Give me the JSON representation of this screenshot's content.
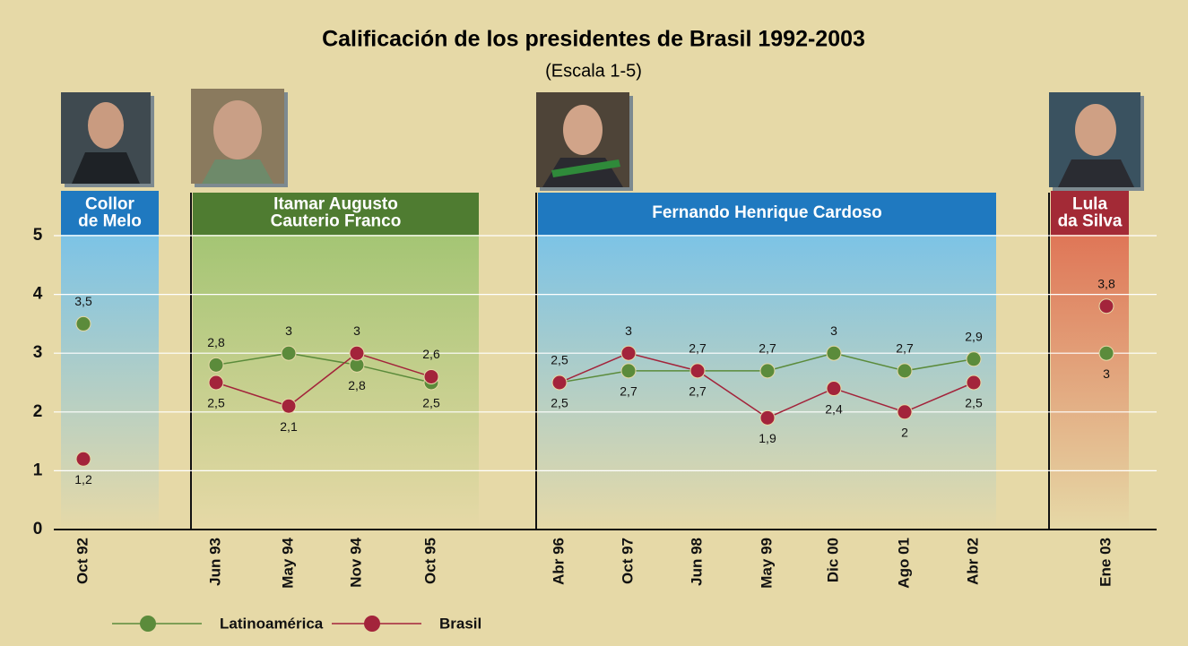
{
  "chart_data": {
    "type": "line",
    "title": "Calificación de los presidentes de Brasil 1992-2003",
    "subtitle": "(Escala 1-5)",
    "categories": [
      "Oct 92",
      "Jun 93",
      "May 94",
      "Nov 94",
      "Oct 95",
      "Abr 96",
      "Oct 97",
      "Jun 98",
      "May 99",
      "Dic 00",
      "Ago 01",
      "Abr 02",
      "Ene 03"
    ],
    "series": [
      {
        "name": "Latinoamérica",
        "color": "#5b8b3b",
        "values": [
          3.5,
          2.8,
          3,
          2.8,
          2.5,
          2.5,
          2.7,
          2.7,
          2.7,
          3,
          2.7,
          2.9,
          3
        ],
        "value_labels": [
          "3,5",
          "2,8",
          "3",
          "2,8",
          "2,5",
          "2,5",
          "2,7",
          "2,7",
          "2,7",
          "3",
          "2,7",
          "2,9",
          "3"
        ]
      },
      {
        "name": "Brasil",
        "color": "#a3243b",
        "values": [
          1.2,
          2.5,
          2.1,
          3,
          2.6,
          2.5,
          3,
          2.7,
          1.9,
          2.4,
          2,
          2.5,
          3.8
        ],
        "value_labels": [
          "1,2",
          "2,5",
          "2,1",
          "3",
          "2,6",
          "2,5",
          "3",
          "2,7",
          "1,9",
          "2,4",
          "2",
          "2,5",
          "3,8"
        ]
      }
    ],
    "periods": [
      {
        "label": [
          "Collor",
          "de Melo"
        ],
        "from": "Oct 92",
        "to": "Oct 92"
      },
      {
        "label": [
          "Itamar Augusto",
          "Cauterio Franco"
        ],
        "from": "Jun 93",
        "to": "Oct 95"
      },
      {
        "label": [
          "Fernando Henrique Cardoso"
        ],
        "from": "Abr 96",
        "to": "Abr 02"
      },
      {
        "label": [
          "Lula",
          "da Silva"
        ],
        "from": "Ene 03",
        "to": "Ene 03"
      }
    ],
    "ylim": [
      0,
      5
    ],
    "yticks": [
      0,
      1,
      2,
      3,
      4,
      5
    ],
    "grid": true
  }
}
